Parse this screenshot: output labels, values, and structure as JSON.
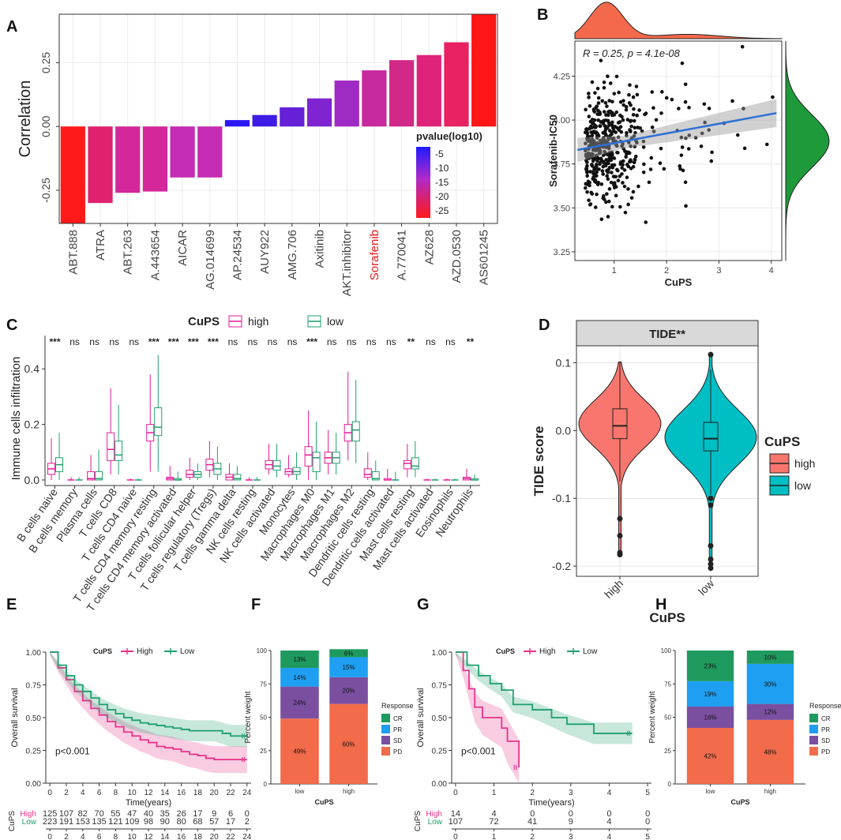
{
  "figure": {
    "panel_letters": [
      "A",
      "B",
      "C",
      "D",
      "E",
      "F",
      "G",
      "H"
    ]
  },
  "chart_data": [
    {
      "panel": "A",
      "type": "bar",
      "ylabel": "Correlation",
      "ylim": [
        -0.38,
        0.44
      ],
      "yticks": [
        -0.25,
        0,
        0.25
      ],
      "yticklabels": [
        "-0.25",
        "0.00",
        "0.25"
      ],
      "categories": [
        "ABT.888",
        "ATRA",
        "ABT.263",
        "A.443654",
        "AICAR",
        "AG.014699",
        "AP.24534",
        "AUY922",
        "AMG.706",
        "Axitinib",
        "AKT.inhibitor",
        "Sorafenib",
        "A.770041",
        "AZ628",
        "AZD.0530",
        "AS601245"
      ],
      "values": [
        -0.38,
        -0.3,
        -0.26,
        -0.255,
        -0.2,
        -0.2,
        0.025,
        0.045,
        0.075,
        0.11,
        0.18,
        0.22,
        0.26,
        0.28,
        0.33,
        0.44
      ],
      "colors": [
        "#ff1a1a",
        "#e0226e",
        "#d4289a",
        "#d4289a",
        "#c42cb4",
        "#c42cb4",
        "#2a18f5",
        "#3f1ce6",
        "#6520d8",
        "#7e24d0",
        "#a02ac4",
        "#c62a9e",
        "#d22887",
        "#e0237a",
        "#e82162",
        "#ff1616"
      ],
      "highlight": "Sorafenib",
      "highlight_color": "#e8191c",
      "legend_title": "pvalue(log10)",
      "legend_ticks": [
        "-5",
        "-10",
        "-15",
        "-20",
        "-25"
      ]
    },
    {
      "panel": "B",
      "type": "scatter",
      "xlabel": "CuPS",
      "ylabel": "Sorafenib-IC50",
      "xlim": [
        0.25,
        4.2
      ],
      "ylim": [
        3.2,
        4.45
      ],
      "xticks": [
        1,
        2,
        3,
        4
      ],
      "yticks": [
        3.25,
        3.5,
        3.75,
        4.0,
        4.25
      ],
      "yticklabels": [
        "3.25",
        "3.50",
        "3.75",
        "4.00",
        "4.25"
      ],
      "annotation": "R = 0.25, p = 4.1e-08",
      "fit": {
        "x": [
          0.3,
          4.1
        ],
        "y": [
          3.83,
          4.04
        ]
      },
      "n_points": 470,
      "top_density_color": "#f4694c",
      "right_density_color": "#1f9a3a"
    },
    {
      "panel": "C",
      "type": "boxplot",
      "ylabel": "Immune cells infiltration",
      "ylim": [
        -0.02,
        0.52
      ],
      "yticks": [
        0.0,
        0.2,
        0.4
      ],
      "yticklabels": [
        "0.0",
        "0.2",
        "0.4"
      ],
      "legend_title": "CuPS",
      "legend": [
        "high",
        "low"
      ],
      "colors": {
        "high": "#e51a9b",
        "low": "#1e9f6e"
      },
      "categories": [
        "B cells naive",
        "B cells memory",
        "Plasma cells",
        "T cells CD8",
        "T cells CD4 naive",
        "T cells CD4 memory resting",
        "T cells CD4 memory activated",
        "T cells follicular helper",
        "T cells regulatory (Tregs)",
        "T cells gamma delta",
        "NK cells resting",
        "NK cells activated",
        "Monocytes",
        "Macrophages M0",
        "Macrophages M1",
        "Macrophages M2",
        "Dendritic cells resting",
        "Dendritic cells activated",
        "Mast cells resting",
        "Mast cells activated",
        "Eosinophils",
        "Neutrophils"
      ],
      "significance": [
        "***",
        "ns",
        "ns",
        "ns",
        "ns",
        "***",
        "***",
        "***",
        "***",
        "ns",
        "ns",
        "ns",
        "ns",
        "***",
        "ns",
        "ns",
        "ns",
        "ns",
        "**",
        "ns",
        "ns",
        "**"
      ],
      "series": [
        {
          "name": "high",
          "boxes": [
            [
              0,
              0.02,
              0.04,
              0.06,
              0.15
            ],
            [
              0,
              0,
              0,
              0,
              0.01
            ],
            [
              0,
              0,
              0.005,
              0.03,
              0.09
            ],
            [
              0.02,
              0.07,
              0.11,
              0.17,
              0.33
            ],
            [
              0,
              0,
              0,
              0,
              0.005
            ],
            [
              0.03,
              0.14,
              0.17,
              0.2,
              0.38
            ],
            [
              0,
              0,
              0.005,
              0.01,
              0.05
            ],
            [
              0,
              0.01,
              0.02,
              0.035,
              0.08
            ],
            [
              0.01,
              0.035,
              0.055,
              0.075,
              0.14
            ],
            [
              0,
              0,
              0.01,
              0.02,
              0.06
            ],
            [
              0,
              0,
              0,
              0,
              0.01
            ],
            [
              0.02,
              0.04,
              0.055,
              0.07,
              0.13
            ],
            [
              0.01,
              0.02,
              0.03,
              0.04,
              0.09
            ],
            [
              0,
              0.05,
              0.09,
              0.12,
              0.25
            ],
            [
              0.02,
              0.06,
              0.08,
              0.1,
              0.18
            ],
            [
              0.07,
              0.14,
              0.17,
              0.2,
              0.39
            ],
            [
              0,
              0.01,
              0.02,
              0.04,
              0.1
            ],
            [
              0,
              0,
              0,
              0.005,
              0.04
            ],
            [
              0.01,
              0.04,
              0.06,
              0.07,
              0.13
            ],
            [
              0,
              0,
              0,
              0,
              0.005
            ],
            [
              0,
              0,
              0,
              0,
              0.005
            ],
            [
              0,
              0,
              0.005,
              0.01,
              0.04
            ]
          ]
        },
        {
          "name": "low",
          "boxes": [
            [
              0,
              0.03,
              0.055,
              0.08,
              0.17
            ],
            [
              0,
              0,
              0,
              0,
              0.01
            ],
            [
              0,
              0,
              0.005,
              0.03,
              0.11
            ],
            [
              0.02,
              0.07,
              0.09,
              0.14,
              0.27
            ],
            [
              0,
              0,
              0,
              0,
              0.005
            ],
            [
              0.03,
              0.16,
              0.19,
              0.26,
              0.45
            ],
            [
              0,
              0,
              0,
              0.005,
              0.03
            ],
            [
              0,
              0.01,
              0.02,
              0.03,
              0.06
            ],
            [
              0,
              0.02,
              0.04,
              0.06,
              0.12
            ],
            [
              0,
              0,
              0.005,
              0.02,
              0.05
            ],
            [
              0,
              0,
              0,
              0,
              0.01
            ],
            [
              0.01,
              0.035,
              0.05,
              0.07,
              0.13
            ],
            [
              0,
              0.02,
              0.03,
              0.045,
              0.1
            ],
            [
              0,
              0.03,
              0.08,
              0.1,
              0.21
            ],
            [
              0.02,
              0.06,
              0.08,
              0.1,
              0.17
            ],
            [
              0.06,
              0.14,
              0.18,
              0.21,
              0.36
            ],
            [
              0,
              0,
              0.005,
              0.03,
              0.07
            ],
            [
              0,
              0,
              0,
              0,
              0.03
            ],
            [
              0.01,
              0.04,
              0.05,
              0.08,
              0.14
            ],
            [
              0,
              0,
              0,
              0,
              0.005
            ],
            [
              0,
              0,
              0,
              0,
              0.005
            ],
            [
              0,
              0,
              0,
              0.005,
              0.02
            ]
          ]
        }
      ]
    },
    {
      "panel": "D",
      "type": "violin",
      "strip_label": "TIDE**",
      "xlabel": "CuPS",
      "ylabel": "TIDE score",
      "ylim": [
        -0.215,
        0.125
      ],
      "yticks": [
        0.1,
        0.0,
        -0.1,
        -0.2
      ],
      "yticklabels": [
        "0.1",
        "0.0",
        "-0.1",
        "-0.2"
      ],
      "categories": [
        "high",
        "low"
      ],
      "colors": [
        "#f8766d",
        "#00bfc4"
      ],
      "legend_title": "CuPS",
      "legend": [
        "high",
        "low"
      ],
      "boxes": [
        [
          -0.075,
          -0.012,
          0.007,
          0.032,
          0.102
        ],
        [
          -0.095,
          -0.03,
          -0.012,
          0.012,
          0.09
        ]
      ],
      "outliers": [
        [
          -0.13,
          -0.155,
          -0.18,
          -0.183
        ],
        [
          -0.1,
          -0.11,
          -0.17,
          -0.19,
          -0.197,
          -0.203,
          0.112
        ]
      ]
    },
    {
      "panel": "E",
      "type": "line",
      "subtype": "survival",
      "xlabel": "Time(years)",
      "ylabel": "Overall survival",
      "xlim": [
        -0.5,
        24.5
      ],
      "ylim": [
        0,
        1.0
      ],
      "xticks": [
        0,
        2,
        4,
        6,
        8,
        10,
        12,
        14,
        16,
        18,
        20,
        22,
        24
      ],
      "yticks": [
        0,
        0.25,
        0.5,
        0.75,
        1.0
      ],
      "yticklabels": [
        "0.00",
        "0.25",
        "0.50",
        "0.75",
        "1.00"
      ],
      "legend_title": "CuPS",
      "pvalue": "p<0.001",
      "series": [
        {
          "name": "High",
          "color": "#e8338a",
          "x": [
            0,
            1,
            2,
            3,
            4,
            5,
            6,
            7,
            8,
            9,
            10,
            11,
            12,
            13,
            14,
            15,
            16,
            17,
            18,
            19,
            20,
            21,
            22,
            23,
            24
          ],
          "y": [
            1.0,
            0.88,
            0.79,
            0.7,
            0.63,
            0.57,
            0.52,
            0.47,
            0.43,
            0.39,
            0.36,
            0.33,
            0.31,
            0.28,
            0.27,
            0.26,
            0.24,
            0.22,
            0.21,
            0.19,
            0.18,
            0.18,
            0.18,
            0.18,
            0.18
          ]
        },
        {
          "name": "Low",
          "color": "#1e9f6e",
          "x": [
            0,
            1,
            2,
            3,
            4,
            5,
            6,
            7,
            8,
            9,
            10,
            11,
            12,
            13,
            14,
            15,
            16,
            17,
            18,
            19,
            20,
            21,
            22,
            23,
            24
          ],
          "y": [
            1.0,
            0.9,
            0.82,
            0.75,
            0.7,
            0.65,
            0.6,
            0.56,
            0.53,
            0.5,
            0.48,
            0.46,
            0.45,
            0.44,
            0.43,
            0.42,
            0.41,
            0.4,
            0.4,
            0.4,
            0.4,
            0.38,
            0.36,
            0.36,
            0.36
          ]
        }
      ],
      "risk_table": {
        "title": "CuPS",
        "High": [
          "125",
          "107",
          "82",
          "70",
          "55",
          "47",
          "40",
          "35",
          "26",
          "17",
          "9",
          "6",
          "0"
        ],
        "Low": [
          "223",
          "191",
          "153",
          "135",
          "121",
          "109",
          "98",
          "90",
          "80",
          "68",
          "57",
          "17",
          "2"
        ]
      }
    },
    {
      "panel": "F",
      "type": "bar",
      "subtype": "stacked",
      "ylabel": "Percent weight",
      "xlabel": "CuPS",
      "categories": [
        "low",
        "high"
      ],
      "yticks": [
        0,
        25,
        50,
        75,
        100
      ],
      "legend_title": "Response",
      "legend": [
        "CR",
        "PR",
        "SD",
        "PD"
      ],
      "colors": {
        "CR": "#1f9a5e",
        "PR": "#1e9ff2",
        "SD": "#7b4fa0",
        "PD": "#f26b4a"
      },
      "series": [
        {
          "name": "PD",
          "values": [
            49,
            60
          ],
          "labels": [
            "49%",
            "60%"
          ]
        },
        {
          "name": "SD",
          "values": [
            24,
            20
          ],
          "labels": [
            "24%",
            "20%"
          ]
        },
        {
          "name": "PR",
          "values": [
            14,
            15
          ],
          "labels": [
            "14%",
            "15%"
          ]
        },
        {
          "name": "CR",
          "values": [
            13,
            6
          ],
          "labels": [
            "13%",
            "6%"
          ]
        }
      ]
    },
    {
      "panel": "G",
      "type": "line",
      "subtype": "survival",
      "xlabel": "Time(years)",
      "ylabel": "Overall survival",
      "xlim": [
        -0.1,
        5.1
      ],
      "ylim": [
        0,
        1.0
      ],
      "xticks": [
        0,
        1,
        2,
        3,
        4,
        5
      ],
      "yticks": [
        0,
        0.25,
        0.5,
        0.75,
        1.0
      ],
      "yticklabels": [
        "0.00",
        "0.25",
        "0.50",
        "0.75",
        "1.00"
      ],
      "legend_title": "CuPS",
      "pvalue": "p<0.001",
      "series": [
        {
          "name": "High",
          "color": "#e8338a",
          "x": [
            0,
            0.2,
            0.35,
            0.5,
            0.7,
            1.2,
            1.35,
            1.65
          ],
          "y": [
            1.0,
            0.86,
            0.72,
            0.58,
            0.5,
            0.42,
            0.32,
            0.12
          ]
        },
        {
          "name": "Low",
          "color": "#1e9f6e",
          "x": [
            0,
            0.3,
            0.6,
            0.9,
            1.2,
            1.5,
            2.0,
            2.5,
            2.9,
            3.6,
            4.6
          ],
          "y": [
            1.0,
            0.9,
            0.82,
            0.76,
            0.71,
            0.6,
            0.56,
            0.5,
            0.45,
            0.38,
            0.38
          ]
        }
      ],
      "risk_table": {
        "title": "CuPS",
        "High": [
          "14",
          "4",
          "0",
          "0",
          "0",
          "0"
        ],
        "Low": [
          "107",
          "72",
          "41",
          "9",
          "4",
          "0"
        ]
      }
    },
    {
      "panel": "H",
      "type": "bar",
      "subtype": "stacked",
      "ylabel": "Percent weight",
      "xlabel": "CuPS",
      "categories": [
        "low",
        "high"
      ],
      "yticks": [
        0,
        25,
        50,
        75,
        100
      ],
      "legend_title": "Response",
      "legend": [
        "CR",
        "PR",
        "SD",
        "PD"
      ],
      "colors": {
        "CR": "#1f9a5e",
        "PR": "#1e9ff2",
        "SD": "#7b4fa0",
        "PD": "#f26b4a"
      },
      "series": [
        {
          "name": "PD",
          "values": [
            42,
            48
          ],
          "labels": [
            "42%",
            "48%"
          ]
        },
        {
          "name": "SD",
          "values": [
            16,
            12
          ],
          "labels": [
            "16%",
            "12%"
          ]
        },
        {
          "name": "PR",
          "values": [
            19,
            30
          ],
          "labels": [
            "19%",
            "30%"
          ]
        },
        {
          "name": "CR",
          "values": [
            23,
            10
          ],
          "labels": [
            "23%",
            "10%"
          ]
        }
      ]
    }
  ]
}
